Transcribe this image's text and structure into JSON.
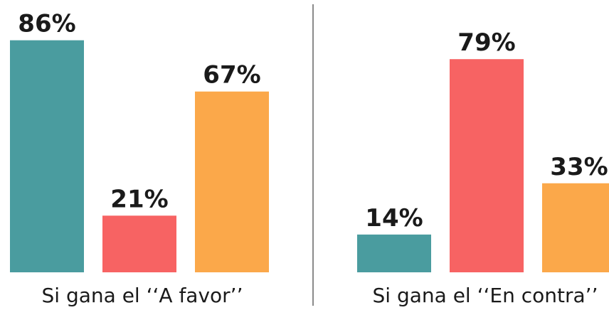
{
  "chart_data": [
    {
      "type": "bar",
      "caption": "Si gana el ‘‘A favor’’",
      "values": [
        86,
        21,
        67
      ],
      "labels": [
        "86%",
        "21%",
        "67%"
      ],
      "colors": [
        "#4a9c9f",
        "#f76363",
        "#fba84a"
      ],
      "ylim": [
        0,
        100
      ]
    },
    {
      "type": "bar",
      "caption": "Si gana el ‘‘En contra’’",
      "values": [
        14,
        79,
        33
      ],
      "labels": [
        "14%",
        "79%",
        "33%"
      ],
      "colors": [
        "#4a9c9f",
        "#f76363",
        "#fba84a"
      ],
      "ylim": [
        0,
        100
      ]
    }
  ],
  "divider_color": "#8a8a8a"
}
